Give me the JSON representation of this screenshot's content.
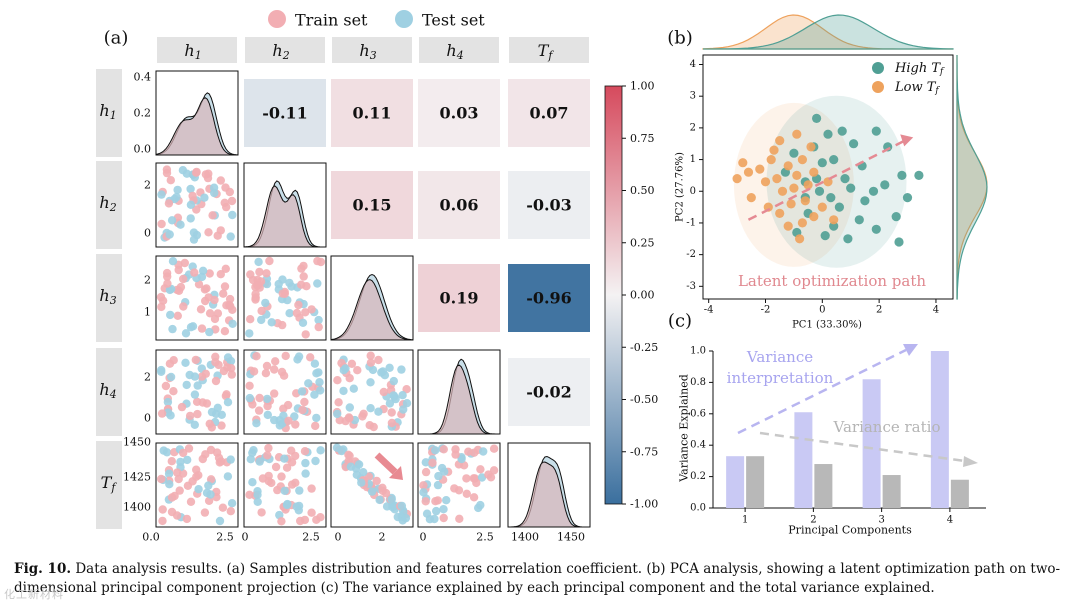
{
  "colors": {
    "train": "#f2aeb3",
    "test": "#9fd0e2",
    "header_bg": "#e3e3e3",
    "high_tf": "#4f9f94",
    "low_tf": "#eea25d",
    "bar_var": "#c9c9f4",
    "bar_ratio": "#b8b8b8",
    "arrow_var": "#b8b5f0",
    "arrow_ratio": "#c8c8c8",
    "path": "#e58a93",
    "kde_train_fill": "#d9b5b9",
    "kde_test_fill": "#bcd7e3",
    "neg": "#3a6f9e",
    "pos": "#d64a5d"
  },
  "caption": {
    "label": "Fig. 10.",
    "text": "Data analysis results. (a) Samples distribution and features correlation coefficient. (b) PCA analysis, showing a latent optimization path on two-dimensional principal component projection (c) The variance explained by each principal component and the total variance explained."
  },
  "watermark": "化工新材料",
  "chart_data": [
    {
      "id": "a",
      "type": "heatmap",
      "panel_label": "(a)",
      "legend": [
        "Train set",
        "Test set"
      ],
      "features": [
        "h1",
        "h2",
        "h3",
        "h4",
        "Tf"
      ],
      "feature_labels": [
        {
          "base": "h",
          "sub": "1"
        },
        {
          "base": "h",
          "sub": "2"
        },
        {
          "base": "h",
          "sub": "3"
        },
        {
          "base": "h",
          "sub": "4"
        },
        {
          "base": "T",
          "sub": "f"
        }
      ],
      "correlations": [
        {
          "row": 0,
          "col": 1,
          "value": -0.11,
          "label": "-0.11"
        },
        {
          "row": 0,
          "col": 2,
          "value": 0.11,
          "label": "0.11"
        },
        {
          "row": 0,
          "col": 3,
          "value": 0.03,
          "label": "0.03"
        },
        {
          "row": 0,
          "col": 4,
          "value": 0.07,
          "label": "0.07"
        },
        {
          "row": 1,
          "col": 2,
          "value": 0.15,
          "label": "0.15"
        },
        {
          "row": 1,
          "col": 3,
          "value": 0.06,
          "label": "0.06"
        },
        {
          "row": 1,
          "col": 4,
          "value": -0.03,
          "label": "-0.03"
        },
        {
          "row": 2,
          "col": 3,
          "value": 0.19,
          "label": "0.19"
        },
        {
          "row": 2,
          "col": 4,
          "value": -0.96,
          "label": "-0.96"
        },
        {
          "row": 3,
          "col": 4,
          "value": -0.02,
          "label": "-0.02"
        }
      ],
      "colorbar": {
        "min": -1.0,
        "max": 1.0,
        "ticks": [
          "1.00",
          "0.75",
          "0.50",
          "0.25",
          "0.00",
          "-0.25",
          "-0.50",
          "-0.75",
          "-1.00"
        ]
      },
      "row_axis_ticks": [
        {
          "row": 0,
          "labels": [
            "0.4",
            "0.2",
            "0.0"
          ]
        },
        {
          "row": 1,
          "labels": [
            "2",
            "0"
          ]
        },
        {
          "row": 2,
          "labels": [
            "2",
            "1"
          ]
        },
        {
          "row": 3,
          "labels": [
            "2",
            "0"
          ]
        },
        {
          "row": 4,
          "labels": [
            "1450",
            "1425",
            "1400"
          ]
        }
      ],
      "col_axis_ticks": [
        {
          "col": 0,
          "labels": [
            "0.0",
            "2.5"
          ]
        },
        {
          "col": 1,
          "labels": [
            "0",
            "2.5"
          ]
        },
        {
          "col": 2,
          "labels": [
            "0",
            "2"
          ]
        },
        {
          "col": 3,
          "labels": [
            "0",
            "2.5"
          ]
        },
        {
          "col": 4,
          "labels": [
            "1400",
            "1450"
          ]
        }
      ]
    },
    {
      "id": "b",
      "type": "scatter",
      "panel_label": "(b)",
      "xlabel": "PC1 (33.30%)",
      "ylabel": "PC2 (27.76%)",
      "xlim": [
        -4.2,
        4.6
      ],
      "ylim": [
        -3.4,
        4.3
      ],
      "xticks": [
        -4,
        -2,
        0,
        2,
        4
      ],
      "yticks": [
        -3,
        -2,
        -1,
        0,
        1,
        2,
        3,
        4
      ],
      "legend": [
        {
          "name": "High",
          "sub": "f"
        },
        {
          "name": "Low",
          "sub": "f"
        }
      ],
      "annotation": "Latent optimization path",
      "path": {
        "from": [
          -2.6,
          -0.9
        ],
        "to": [
          3.2,
          1.7
        ]
      },
      "series": [
        {
          "name": "High Tf",
          "points": [
            [
              -1.3,
              0.6
            ],
            [
              -1.0,
              1.2
            ],
            [
              -0.6,
              0.3
            ],
            [
              -0.2,
              2.3
            ],
            [
              0.2,
              1.8
            ],
            [
              0.4,
              1.0
            ],
            [
              0.8,
              0.4
            ],
            [
              1.4,
              0.8
            ],
            [
              1.9,
              1.9
            ],
            [
              2.3,
              1.4
            ],
            [
              2.8,
              0.5
            ],
            [
              3.4,
              0.5
            ],
            [
              2.6,
              -0.8
            ],
            [
              3.0,
              -0.2
            ],
            [
              1.8,
              0.0
            ],
            [
              1.3,
              -0.9
            ],
            [
              0.6,
              -0.5
            ],
            [
              0.1,
              -1.4
            ],
            [
              -0.5,
              -0.7
            ],
            [
              -0.9,
              -1.3
            ],
            [
              1.9,
              -1.2
            ],
            [
              2.7,
              -1.6
            ],
            [
              0.9,
              -1.5
            ],
            [
              -0.2,
              0.4
            ],
            [
              0.3,
              -0.2
            ],
            [
              1.1,
              1.5
            ],
            [
              -0.6,
              -0.2
            ],
            [
              0.7,
              1.9
            ],
            [
              1.5,
              -0.3
            ],
            [
              0.0,
              0.9
            ],
            [
              -0.3,
              1.4
            ],
            [
              2.2,
              0.2
            ],
            [
              1.0,
              0.1
            ],
            [
              0.4,
              -1.1
            ],
            [
              -0.1,
              0.0
            ]
          ]
        },
        {
          "name": "Low Tf",
          "points": [
            [
              -3.0,
              0.4
            ],
            [
              -2.6,
              0.6
            ],
            [
              -2.2,
              0.7
            ],
            [
              -2.0,
              0.3
            ],
            [
              -1.8,
              1.0
            ],
            [
              -1.6,
              0.4
            ],
            [
              -1.4,
              0.0
            ],
            [
              -1.2,
              0.8
            ],
            [
              -0.9,
              0.5
            ],
            [
              -0.7,
              1.0
            ],
            [
              -0.5,
              0.2
            ],
            [
              -0.3,
              0.6
            ],
            [
              -1.9,
              -0.5
            ],
            [
              -1.5,
              -0.7
            ],
            [
              -1.1,
              -0.4
            ],
            [
              -0.7,
              -1.0
            ],
            [
              -0.3,
              -0.8
            ],
            [
              0.0,
              -0.5
            ],
            [
              -1.5,
              1.6
            ],
            [
              -0.9,
              1.8
            ],
            [
              -2.5,
              -0.2
            ],
            [
              -1.2,
              -1.1
            ],
            [
              -0.8,
              -1.5
            ],
            [
              -0.4,
              1.4
            ],
            [
              0.2,
              0.3
            ],
            [
              -2.8,
              0.9
            ],
            [
              -1.7,
              1.3
            ],
            [
              -0.6,
              -0.3
            ],
            [
              -1.0,
              0.1
            ],
            [
              0.4,
              -0.9
            ]
          ]
        }
      ]
    },
    {
      "id": "c",
      "type": "bar",
      "panel_label": "(c)",
      "xlabel": "Principal Components",
      "ylabel": "Variance Explained",
      "categories": [
        "1",
        "2",
        "3",
        "4"
      ],
      "ylim": [
        0,
        1.0
      ],
      "yticks": [
        "0.0",
        "0.2",
        "0.4",
        "0.6",
        "0.8",
        "1.0"
      ],
      "series": [
        {
          "name": "Variance interpretation",
          "values": [
            0.33,
            0.61,
            0.82,
            1.0
          ]
        },
        {
          "name": "Variance ratio",
          "values": [
            0.33,
            0.28,
            0.21,
            0.18
          ]
        }
      ],
      "annotations": [
        "Variance interpretation",
        "Variance ratio"
      ]
    }
  ]
}
